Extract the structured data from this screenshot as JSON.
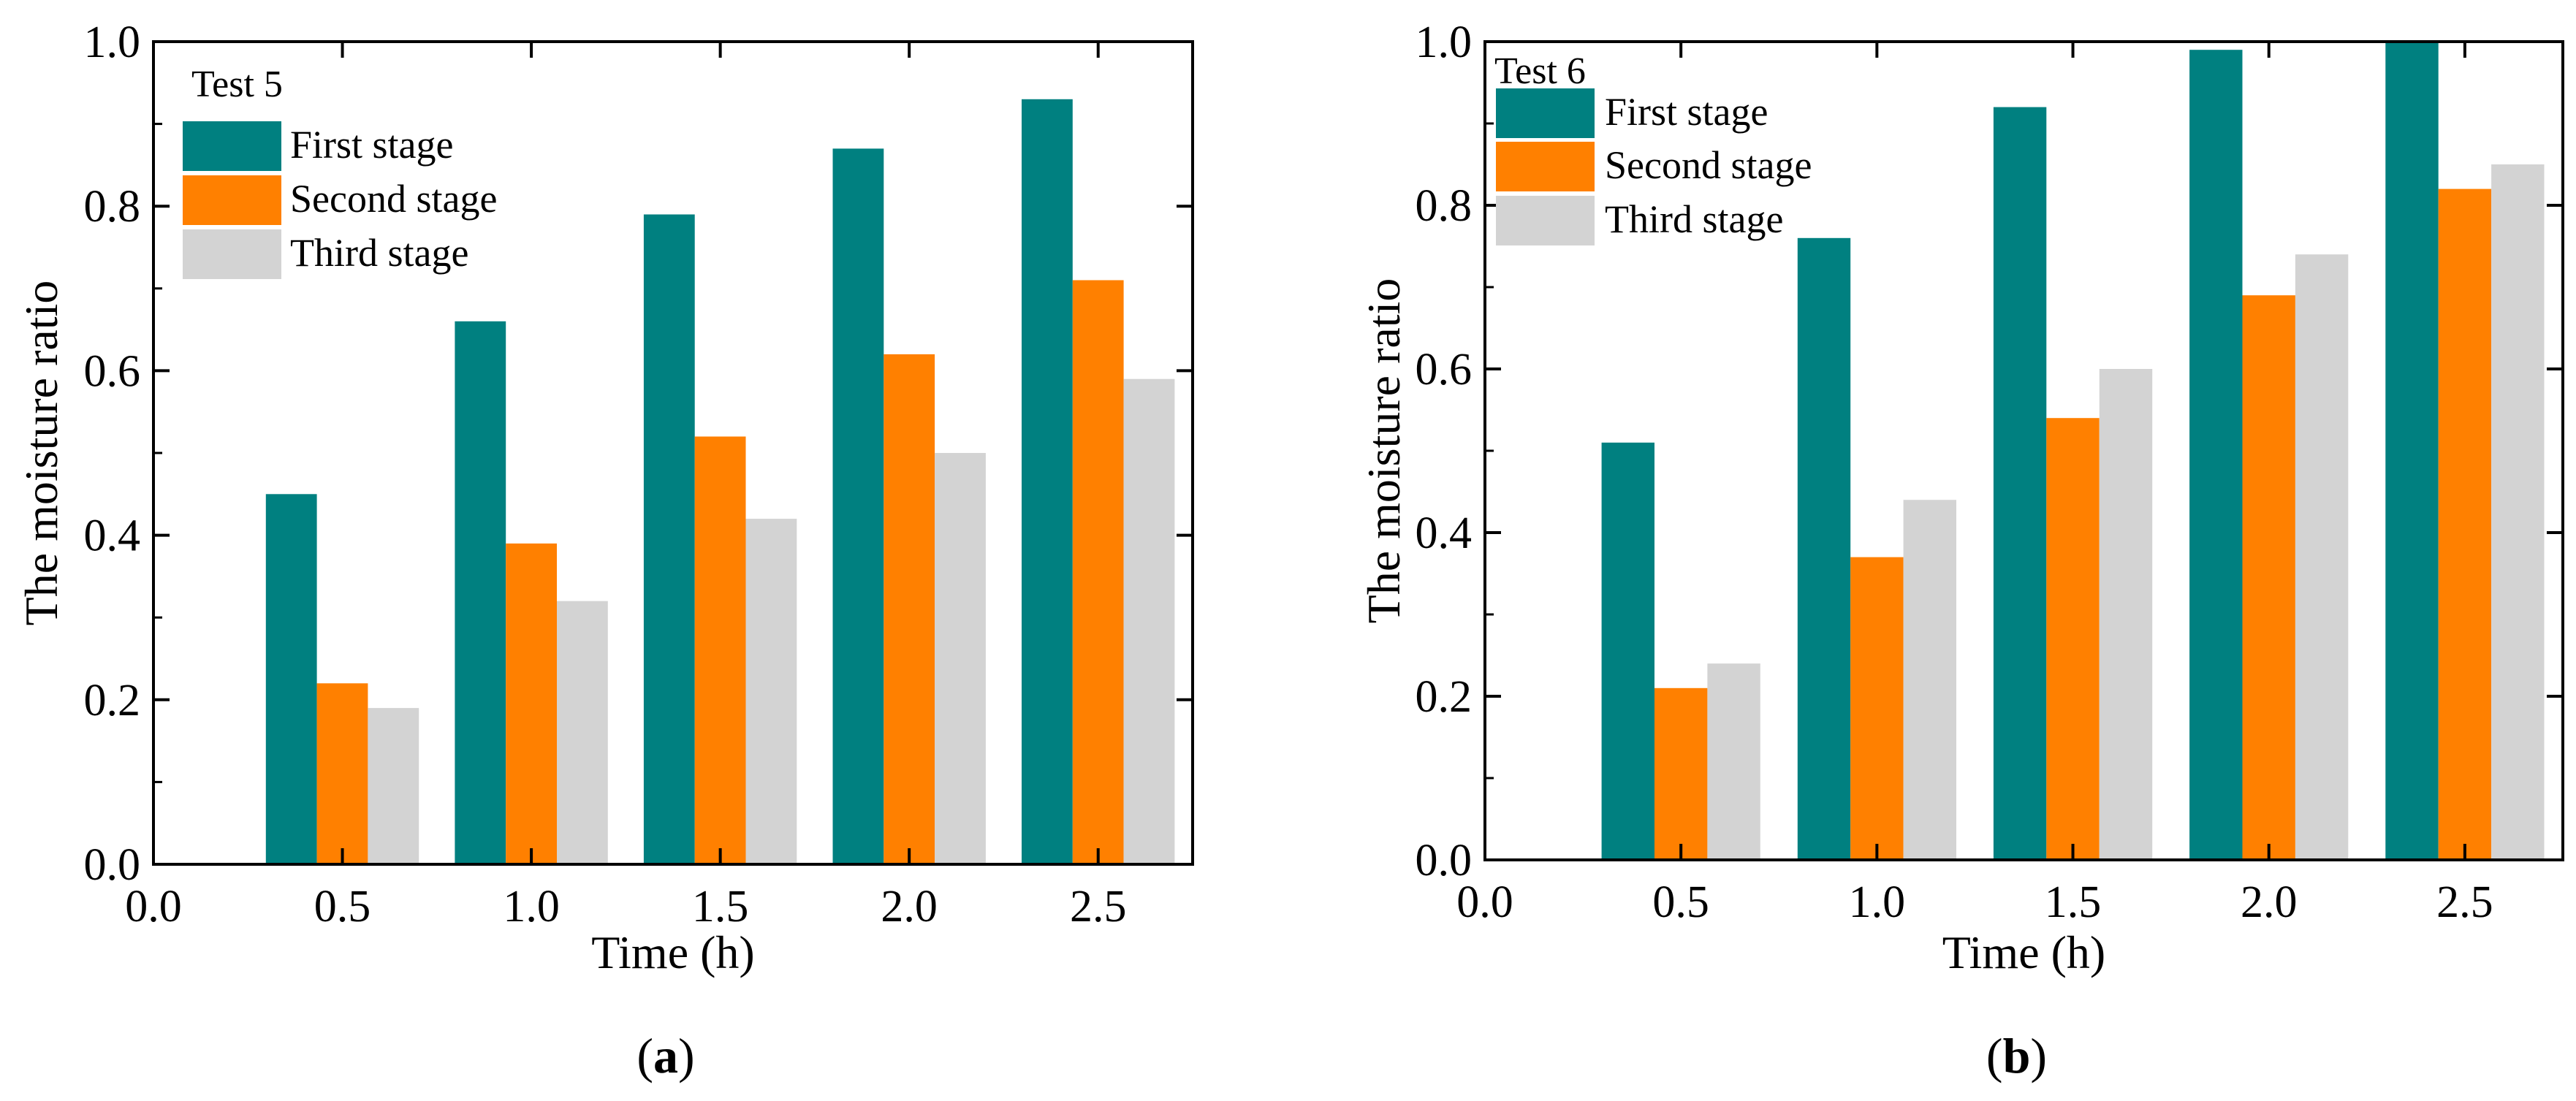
{
  "colors": {
    "first": "#008080",
    "second": "#ff8000",
    "third": "#d3d3d3"
  },
  "chart_data": [
    {
      "type": "bar",
      "panel": "a",
      "caption_open": "(",
      "caption_letter": "a",
      "caption_close": ")",
      "legend_title": "Test 5",
      "xlabel": "Time (h)",
      "ylabel": "The moisture ratio",
      "xlim": [
        0.0,
        2.75
      ],
      "ylim": [
        0.0,
        1.0
      ],
      "x_ticks": [
        "0.0",
        "0.5",
        "1.0",
        "1.5",
        "2.0",
        "2.5"
      ],
      "y_ticks": [
        "0.0",
        "0.2",
        "0.4",
        "0.6",
        "0.8",
        "1.0"
      ],
      "categories": [
        0.5,
        1.0,
        1.5,
        2.0,
        2.5
      ],
      "series": [
        {
          "name": "First stage",
          "values": [
            0.45,
            0.66,
            0.79,
            0.87,
            0.93
          ]
        },
        {
          "name": "Second stage",
          "values": [
            0.22,
            0.39,
            0.52,
            0.62,
            0.71
          ]
        },
        {
          "name": "Third stage",
          "values": [
            0.19,
            0.32,
            0.42,
            0.5,
            0.59
          ]
        }
      ]
    },
    {
      "type": "bar",
      "panel": "b",
      "caption_open": "(",
      "caption_letter": "b",
      "caption_close": ")",
      "legend_title": "Test 6",
      "xlabel": "Time (h)",
      "ylabel": "The moisture ratio",
      "xlim": [
        0.0,
        2.75
      ],
      "ylim": [
        0.0,
        1.0
      ],
      "x_ticks": [
        "0.0",
        "0.5",
        "1.0",
        "1.5",
        "2.0",
        "2.5"
      ],
      "y_ticks": [
        "0.0",
        "0.2",
        "0.4",
        "0.6",
        "0.8",
        "1.0"
      ],
      "categories": [
        0.5,
        1.0,
        1.5,
        2.0,
        2.5
      ],
      "series": [
        {
          "name": "First stage",
          "values": [
            0.51,
            0.76,
            0.92,
            0.99,
            1.0
          ]
        },
        {
          "name": "Second stage",
          "values": [
            0.21,
            0.37,
            0.54,
            0.69,
            0.82
          ]
        },
        {
          "name": "Third stage",
          "values": [
            0.24,
            0.44,
            0.6,
            0.74,
            0.85
          ]
        }
      ]
    }
  ]
}
